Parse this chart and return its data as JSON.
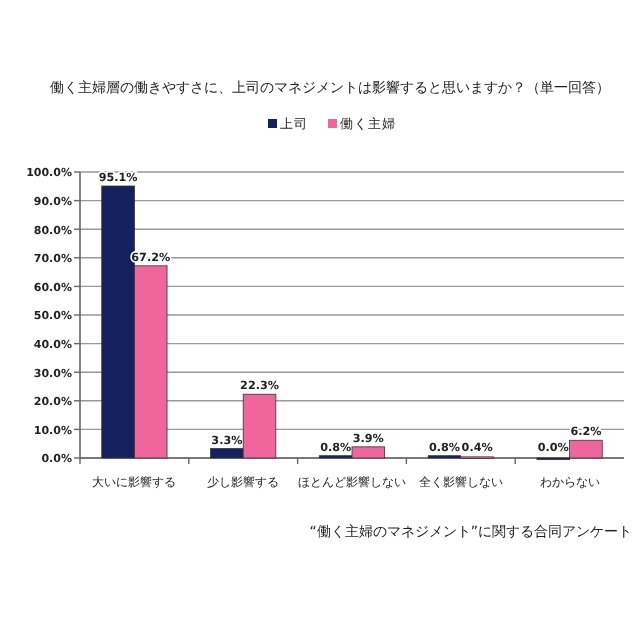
{
  "chart_data": {
    "type": "bar",
    "title": "働く主婦層の働きやすさに、上司のマネジメントは影響すると思いますか？（単一回答）",
    "categories": [
      "大いに影響する",
      "少し影響する",
      "ほとんど影響しない",
      "全く影響しない",
      "わからない"
    ],
    "series": [
      {
        "name": "上司",
        "color": "#14215e",
        "values": [
          95.1,
          3.3,
          0.8,
          0.8,
          0.0
        ],
        "value_labels": [
          "95.1%",
          "3.3%",
          "0.8%",
          "0.8%",
          "0.0%"
        ]
      },
      {
        "name": "働く主婦",
        "color": "#f0669c",
        "values": [
          67.2,
          22.3,
          3.9,
          0.4,
          6.2
        ],
        "value_labels": [
          "67.2%",
          "22.3%",
          "3.9%",
          "0.4%",
          "6.2%"
        ]
      }
    ],
    "ylim": [
      0,
      100
    ],
    "yticks": [
      {
        "value": 0,
        "label": "0.0%"
      },
      {
        "value": 10,
        "label": "10.0%"
      },
      {
        "value": 20,
        "label": "20.0%"
      },
      {
        "value": 30,
        "label": "30.0%"
      },
      {
        "value": 40,
        "label": "40.0%"
      },
      {
        "value": 50,
        "label": "50.0%"
      },
      {
        "value": 60,
        "label": "60.0%"
      },
      {
        "value": 70,
        "label": "70.0%"
      },
      {
        "value": 80,
        "label": "80.0%"
      },
      {
        "value": 90,
        "label": "90.0%"
      },
      {
        "value": 100,
        "label": "100.0%"
      }
    ],
    "grid": "y",
    "legend": "top",
    "annotations": [
      "“働く主婦のマネジメント”に関する合同アンケート"
    ]
  }
}
